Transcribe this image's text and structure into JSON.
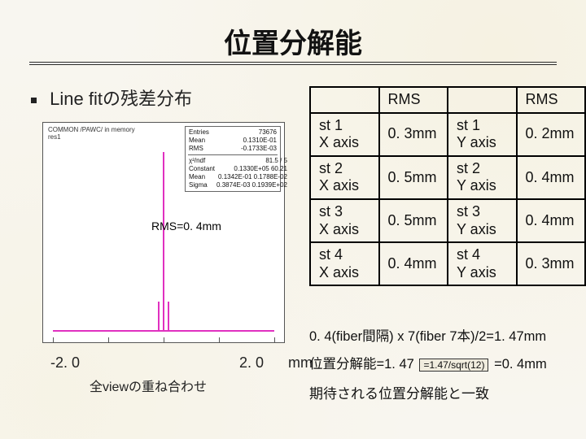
{
  "title": "位置分解能",
  "bullet": "Line fitの残差分布",
  "chart": {
    "header_line1": "COMMON /PAWC/ in memory",
    "header_line2": "   res1",
    "rms_inline_label": "RMS=0. 4mm",
    "x_min_label": "-2. 0",
    "x_max_label": "2. 0",
    "x_unit": "mm",
    "caption": "全viewの重ね合わせ",
    "stats": {
      "entries": "73676",
      "mean": "0.1310E-01",
      "rms": "-0.1733E-03",
      "chi2": "81.5 / 5",
      "const": "0.1330E+05   60.21",
      "mean2": "0.1342E-01   0.1788E-02",
      "sigma": "0.3874E-03   0.1939E+02"
    },
    "colors": {
      "peak": "#e030c0",
      "axis": "#555555",
      "bg": "#ffffff"
    }
  },
  "table": {
    "header": [
      "",
      "RMS",
      "",
      "RMS"
    ],
    "rows": [
      [
        "st 1\nX axis",
        "0. 3mm",
        "st 1\nY axis",
        "0. 2mm"
      ],
      [
        "st 2\nX axis",
        "0. 5mm",
        "st 2\nY axis",
        "0. 4mm"
      ],
      [
        "st 3\nX axis",
        "0. 5mm",
        "st 3\nY axis",
        "0. 4mm"
      ],
      [
        "st 4\nX axis",
        "0. 4mm",
        "st 4\nY axis",
        "0. 3mm"
      ]
    ]
  },
  "calc_line": "0. 4(fiber間隔) x 7(fiber 7本)/2=1. 47mm",
  "resolution_prefix": "位置分解能=1. 47",
  "resolution_box": "=1.47/sqrt(12)",
  "resolution_suffix": "=0. 4mm",
  "expect_line": "期待される位置分解能と一致"
}
